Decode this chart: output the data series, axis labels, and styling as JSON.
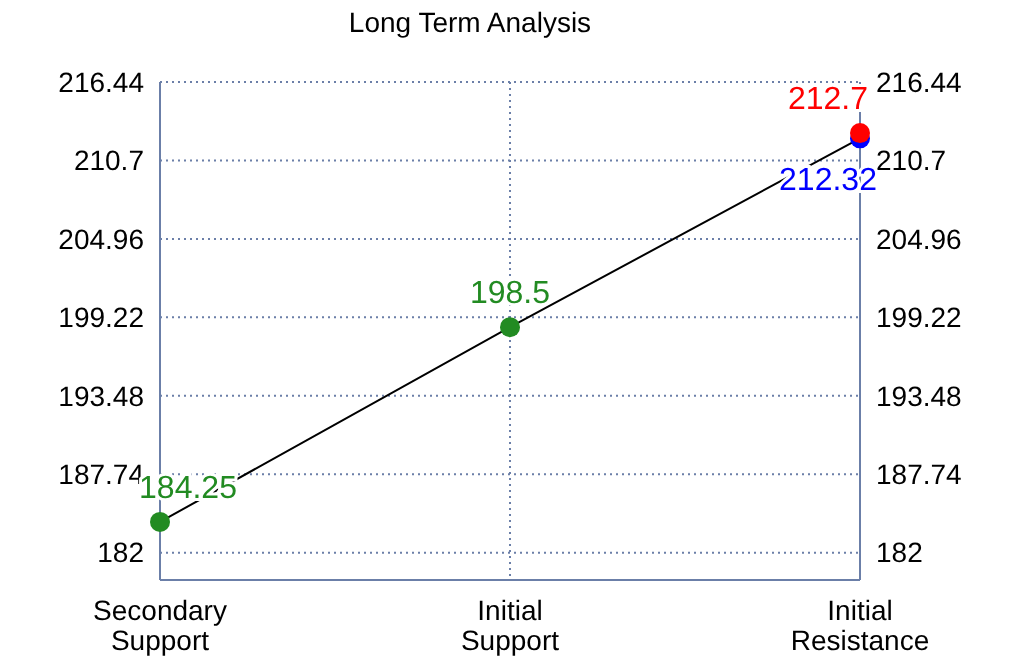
{
  "chart_data": {
    "type": "line",
    "title": "Long Term Analysis",
    "categories": [
      "Secondary Support",
      "Initial Support",
      "Initial Resistance"
    ],
    "series": [
      {
        "color": "#000000",
        "values": [
          184.25,
          198.5,
          212.32
        ],
        "marker": "none"
      },
      {
        "type": "scatter",
        "color": "#228b22",
        "values": [
          184.25,
          198.5,
          null
        ],
        "value_labels": [
          "184.25",
          "198.5",
          null
        ]
      },
      {
        "type": "scatter",
        "color": "#0000ff",
        "values": [
          null,
          null,
          212.32
        ],
        "value_labels": [
          null,
          null,
          "212.32"
        ]
      },
      {
        "type": "scatter",
        "color": "#ff0000",
        "values": [
          null,
          null,
          212.7
        ],
        "value_labels": [
          null,
          null,
          "212.7"
        ]
      }
    ],
    "ylim": [
      180,
      216.44
    ],
    "yticks": [
      182,
      187.74,
      193.48,
      199.22,
      204.96,
      210.7,
      216.44
    ],
    "y2lim": [
      180,
      216.44
    ],
    "y2ticks": [
      182,
      187.74,
      193.48,
      199.22,
      204.96,
      210.7,
      216.44
    ],
    "grid": true,
    "marker": "circle",
    "line_style": "solid"
  }
}
